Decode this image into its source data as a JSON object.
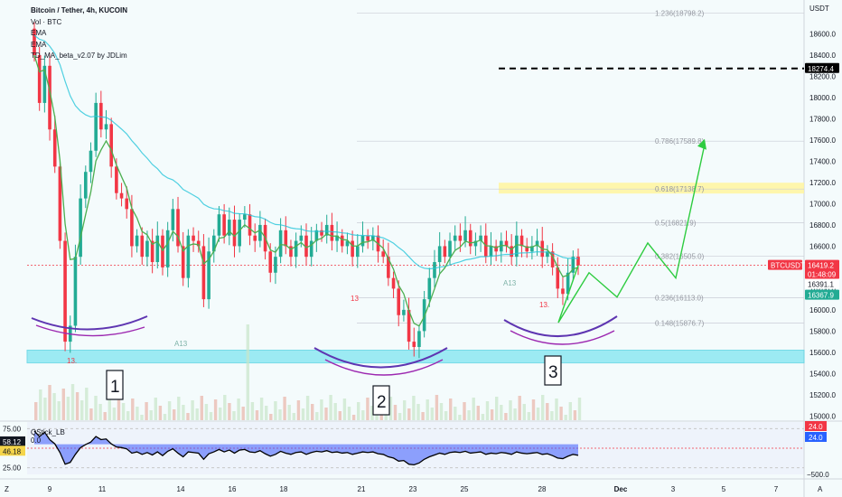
{
  "legend": {
    "title": "Bitcoin / Tether, 4h, KUCOIN",
    "lines": [
      "Vol · BTC",
      "EMA",
      "EMA",
      "TD_MA_beta_v2.07 by JDLim"
    ]
  },
  "price_axis": {
    "unit": "USDT",
    "ticks": [
      "18600.0",
      "18400.0",
      "18200.0",
      "18000.0",
      "17800.0",
      "17600.0",
      "17400.0",
      "17200.0",
      "17000.0",
      "16800.0",
      "16600.0",
      "16400.0",
      "16200.0",
      "16000.0",
      "15800.0",
      "15600.0",
      "15400.0",
      "15200.0",
      "15000.0"
    ],
    "tick_values": [
      18600,
      18400,
      18200,
      18000,
      17800,
      17600,
      17400,
      17200,
      17000,
      16800,
      16600,
      16400,
      16200,
      16000,
      15800,
      15600,
      15400,
      15200,
      15000
    ],
    "badges": [
      {
        "text": "18274.4",
        "value": 18274.4,
        "bg": "#000000",
        "fg": "#ffffff"
      },
      {
        "text": "BTCUSDT",
        "value": 16419.2,
        "bg": "#f23645",
        "fg": "#ffffff",
        "side": "left"
      },
      {
        "text": "16419.2",
        "value": 16419.2,
        "bg": "#f23645",
        "fg": "#ffffff"
      },
      {
        "text": "01:48:09",
        "value": 16370,
        "bg": "#f23645",
        "fg": "#ffffff"
      },
      {
        "text": "16391.1",
        "value": 16391.1,
        "bg": "#ffffff",
        "fg": "#131722"
      },
      {
        "text": "16367.9",
        "value": 16367.9,
        "bg": "#22ab94",
        "fg": "#ffffff"
      }
    ]
  },
  "fib_levels": [
    {
      "label": "1.236(18798.2)",
      "value": 18798.2
    },
    {
      "label": "0.786(17589.8)",
      "value": 17589.8
    },
    {
      "label": "0.618(17138.7)",
      "value": 17138.7
    },
    {
      "label": "0.5(16821.9)",
      "value": 16821.9
    },
    {
      "label": "0.382(16505.0)",
      "value": 16505.0
    },
    {
      "label": "0.236(16113.0)",
      "value": 16113.0
    },
    {
      "label": "0.148(15876.7)",
      "value": 15876.7
    }
  ],
  "time_axis": {
    "labels": [
      "9",
      "11",
      "14",
      "16",
      "18",
      "21",
      "23",
      "25",
      "28",
      "Dec",
      "3",
      "5",
      "7"
    ],
    "corner_left": "Z",
    "corner_right": "A"
  },
  "annotations": {
    "boxes": [
      "1",
      "2",
      "3"
    ],
    "td_labels": [
      "13.",
      "A13",
      "13",
      "A13",
      "13."
    ]
  },
  "oscillator": {
    "name": "QStick_LB",
    "sub": "0.0",
    "left_ticks": [
      {
        "text": "75.00",
        "value": 75
      },
      {
        "text": "58.12",
        "value": 58.12,
        "badge": true,
        "bg": "#131722",
        "fg": "#ffffff"
      },
      {
        "text": "46.18",
        "value": 46.18,
        "badge": true,
        "bg": "#f5d54a",
        "fg": "#131722"
      },
      {
        "text": "25.00",
        "value": 25
      }
    ],
    "right_badges": [
      {
        "text": "24.0",
        "bg": "#f23645",
        "fg": "#ffffff"
      },
      {
        "text": "24.0",
        "bg": "#2962ff",
        "fg": "#ffffff"
      }
    ],
    "right_tick": "−500.0"
  },
  "colors": {
    "up": "#22ab94",
    "down": "#f23645",
    "ema": "#26c6da",
    "td_line": "#4caf50",
    "support_band": "#7fe5f0",
    "fib_golden": "#fff59d",
    "arcs_outer": "#5e35b1",
    "arcs_inner": "#9c27b0",
    "projection": "#2ecc40",
    "qstick_fill": "#3d5afe"
  },
  "chart_data": {
    "type": "candlestick",
    "title": "Bitcoin / Tether, 4h, KUCOIN",
    "ylabel": "USDT",
    "ylim": [
      14960,
      18920
    ],
    "current_price": 16419.2,
    "target_line": 18274.4,
    "support_zone": [
      15500,
      15620
    ],
    "x_labels": [
      "9",
      "11",
      "14",
      "16",
      "18",
      "21",
      "23",
      "25",
      "28",
      "Dec",
      "3",
      "5",
      "7"
    ],
    "closes": [
      18400,
      17950,
      18300,
      17700,
      17350,
      16650,
      15700,
      15850,
      16500,
      17050,
      17300,
      17500,
      17950,
      17700,
      17750,
      17350,
      17100,
      17050,
      16950,
      16600,
      16700,
      16500,
      16650,
      16450,
      16700,
      16400,
      16750,
      16950,
      16600,
      16300,
      16700,
      16650,
      16600,
      16100,
      16550,
      16700,
      16900,
      16700,
      16850,
      16600,
      16850,
      16900,
      16700,
      16650,
      16800,
      16550,
      16350,
      16500,
      16750,
      16600,
      16500,
      16650,
      16700,
      16500,
      16650,
      16750,
      16700,
      16800,
      16650,
      16700,
      16600,
      16650,
      16500,
      16600,
      16700,
      16650,
      16700,
      16550,
      16500,
      16300,
      16200,
      15950,
      16000,
      15700,
      15650,
      15800,
      16100,
      16300,
      16450,
      16600,
      16500,
      16650,
      16700,
      16650,
      16750,
      16600,
      16650,
      16700,
      16500,
      16600,
      16550,
      16650,
      16600,
      16500,
      16700,
      16600,
      16550,
      16600,
      16650,
      16500,
      16550,
      16400,
      16200,
      16150,
      16350,
      16500,
      16419
    ],
    "projection": [
      [
        16419,
        0
      ],
      [
        15880,
        0
      ],
      [
        16350,
        0
      ],
      [
        16120,
        0
      ],
      [
        16630,
        0
      ],
      [
        16320,
        0
      ],
      [
        16990,
        0
      ],
      [
        16880,
        0
      ],
      [
        17570,
        0
      ]
    ]
  }
}
